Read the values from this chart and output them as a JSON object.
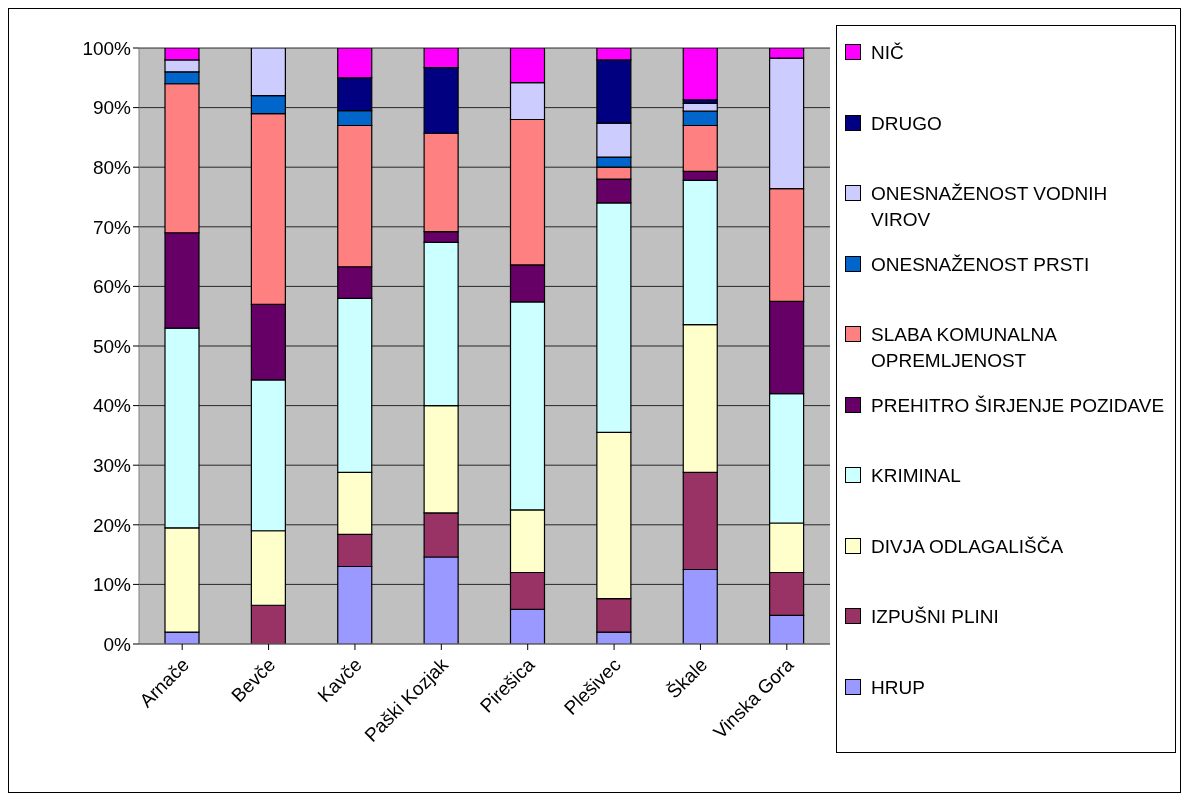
{
  "chart_data": {
    "type": "bar",
    "stacked": true,
    "categories": [
      "Arnače",
      "Bevče",
      "Kavče",
      "Paški Kozjak",
      "Pirešica",
      "Plešivec",
      "Škale",
      "Vinska Gora"
    ],
    "series": [
      {
        "name": "HRUP",
        "color": "#9999ff",
        "values": [
          2,
          0,
          13,
          14.6,
          5.8,
          2,
          12.5,
          4.8
        ]
      },
      {
        "name": "IZPUŠNI PLINI",
        "color": "#993366",
        "values": [
          0,
          6.5,
          5.4,
          7.4,
          6.2,
          5.6,
          16.3,
          7.2
        ]
      },
      {
        "name": "DIVJA ODLAGALIŠČA",
        "color": "#ffffcc",
        "values": [
          17.5,
          12.5,
          10.4,
          18,
          10.5,
          27.9,
          24.8,
          8.3
        ]
      },
      {
        "name": "KRIMINAL",
        "color": "#ccffff",
        "values": [
          33.5,
          25.3,
          29.2,
          27.4,
          34.9,
          38.5,
          24.2,
          21.7
        ]
      },
      {
        "name": "PREHITRO ŠIRJENJE POZIDAVE",
        "color": "#660066",
        "values": [
          16,
          12.7,
          5.3,
          1.8,
          6.2,
          4,
          1.5,
          15.5
        ]
      },
      {
        "name": "SLABA KOMUNALNA OPREMLJENOST",
        "color": "#ff8080",
        "values": [
          25,
          32,
          23.7,
          16.5,
          24.4,
          2,
          7.7,
          18.9
        ]
      },
      {
        "name": "ONESNAŽENOST PRSTI",
        "color": "#0066cc",
        "values": [
          2,
          3,
          2.5,
          0,
          0,
          1.7,
          2.4,
          0
        ]
      },
      {
        "name": "ONESNAŽENOST VODNIH VIROV",
        "color": "#ccccff",
        "values": [
          2,
          8,
          0,
          0,
          6.2,
          5.7,
          1.3,
          21.9
        ]
      },
      {
        "name": "DRUGO",
        "color": "#000080",
        "values": [
          0,
          0,
          5.5,
          11,
          0,
          10.6,
          0.6,
          0
        ]
      },
      {
        "name": "NIČ",
        "color": "#ff00ff",
        "values": [
          2,
          0,
          5,
          3.3,
          5.8,
          2,
          8.7,
          1.7
        ]
      }
    ],
    "ylim": [
      0,
      100
    ],
    "yticks": [
      {
        "value": 0,
        "label": "0%"
      },
      {
        "value": 10,
        "label": "10%"
      },
      {
        "value": 20,
        "label": "20%"
      },
      {
        "value": 30,
        "label": "30%"
      },
      {
        "value": 40,
        "label": "40%"
      },
      {
        "value": 50,
        "label": "50%"
      },
      {
        "value": 60,
        "label": "60%"
      },
      {
        "value": 70,
        "label": "70%"
      },
      {
        "value": 80,
        "label": "80%"
      },
      {
        "value": 90,
        "label": "90%"
      },
      {
        "value": 100,
        "label": "100%"
      }
    ],
    "grid": "y",
    "legend": "right"
  }
}
